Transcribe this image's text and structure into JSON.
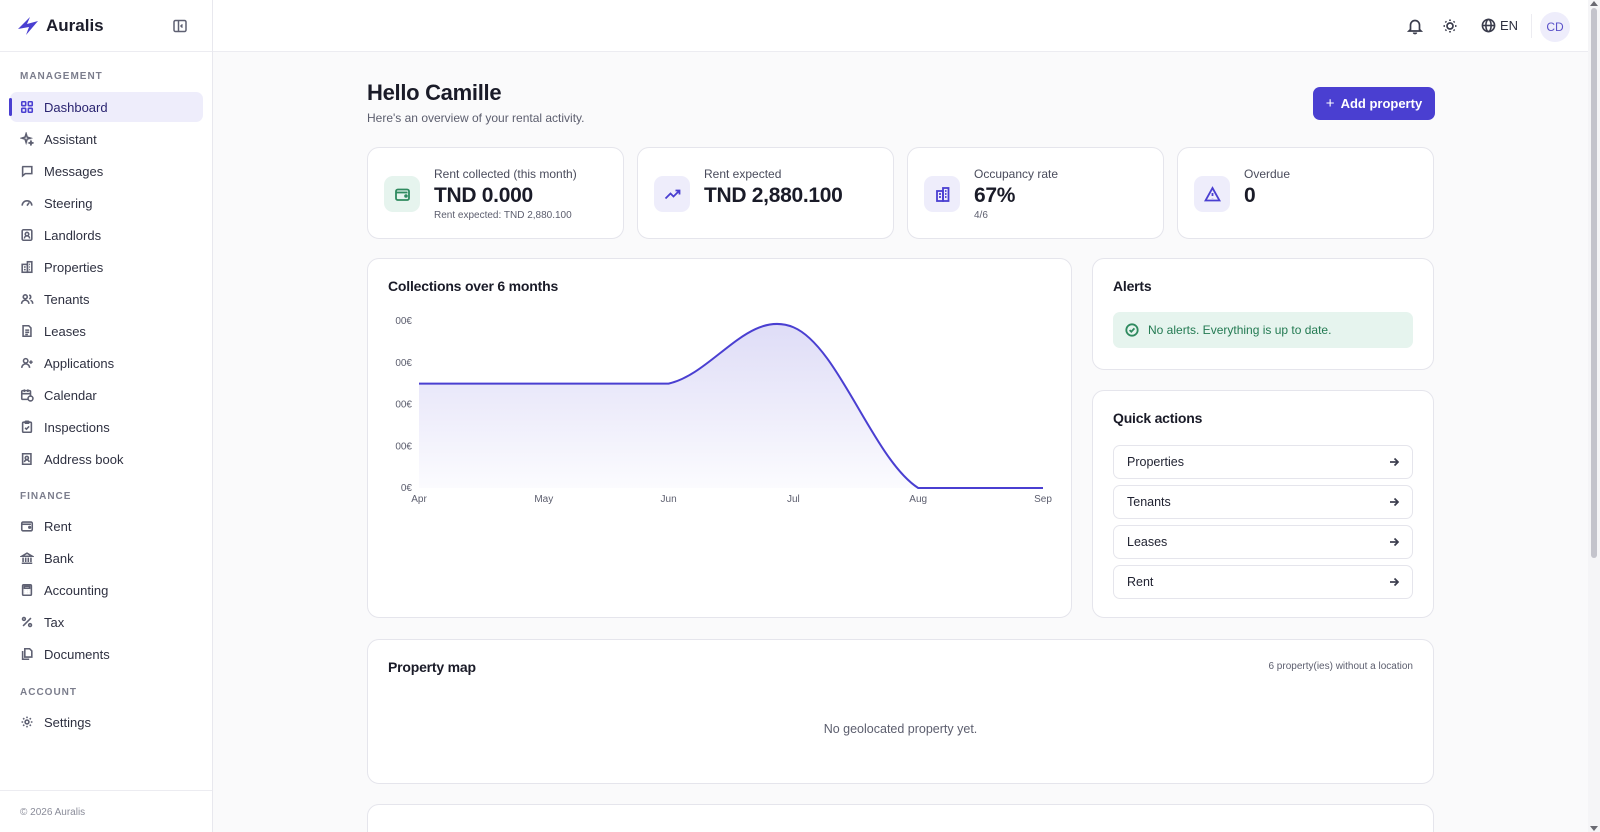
{
  "app": {
    "name": "Auralis",
    "footer": "© 2026 Auralis"
  },
  "sidebar": {
    "sections": {
      "management": "MANAGEMENT",
      "finance": "FINANCE",
      "account": "ACCOUNT"
    },
    "management_items": [
      "Dashboard",
      "Assistant",
      "Messages",
      "Steering",
      "Landlords",
      "Properties",
      "Tenants",
      "Leases",
      "Applications",
      "Calendar",
      "Inspections",
      "Address book"
    ],
    "finance_items": [
      "Rent",
      "Bank",
      "Accounting",
      "Tax",
      "Documents"
    ],
    "account_items": [
      "Settings"
    ],
    "active": "Dashboard"
  },
  "topbar": {
    "language": "EN",
    "avatar_initials": "CD"
  },
  "header": {
    "title": "Hello Camille",
    "subtitle": "Here's an overview of your rental activity.",
    "add_button": "Add property"
  },
  "stats": [
    {
      "label": "Rent collected (this month)",
      "value": "TND 0.000",
      "sub": "Rent expected: TND 2,880.100",
      "icon": "wallet-icon",
      "color": "#2f8a5f",
      "bg": "#e6f4ee"
    },
    {
      "label": "Rent expected",
      "value": "TND 2,880.100",
      "sub": "",
      "icon": "trend-up-icon",
      "color": "#4a3fd1",
      "bg": "#eeedfb"
    },
    {
      "label": "Occupancy rate",
      "value": "67%",
      "sub": "4/6",
      "icon": "building-icon",
      "color": "#4a3fd1",
      "bg": "#eeedfb"
    },
    {
      "label": "Overdue",
      "value": "0",
      "sub": "",
      "icon": "warning-icon",
      "color": "#4a3fd1",
      "bg": "#eeedfb"
    }
  ],
  "collections": {
    "title": "Collections over 6 months"
  },
  "chart_data": {
    "type": "area",
    "title": "Collections over 6 months",
    "categories": [
      "Apr",
      "May",
      "Jun",
      "Jul",
      "Aug",
      "Sep"
    ],
    "y_tick_labels": [
      "00€",
      "00€",
      "00€",
      "00€",
      "0€"
    ],
    "values": [
      2.5,
      2.5,
      2.5,
      3.85,
      0,
      0
    ],
    "ylim": [
      0,
      4
    ],
    "xlabel": "",
    "ylabel": "",
    "grid": false,
    "color": "#4a3fd1"
  },
  "alerts": {
    "title": "Alerts",
    "message": "No alerts. Everything is up to date."
  },
  "quick_actions": {
    "title": "Quick actions",
    "items": [
      "Properties",
      "Tenants",
      "Leases",
      "Rent"
    ]
  },
  "property_map": {
    "title": "Property map",
    "note": "6 property(ies) without a location",
    "empty": "No geolocated property yet."
  }
}
